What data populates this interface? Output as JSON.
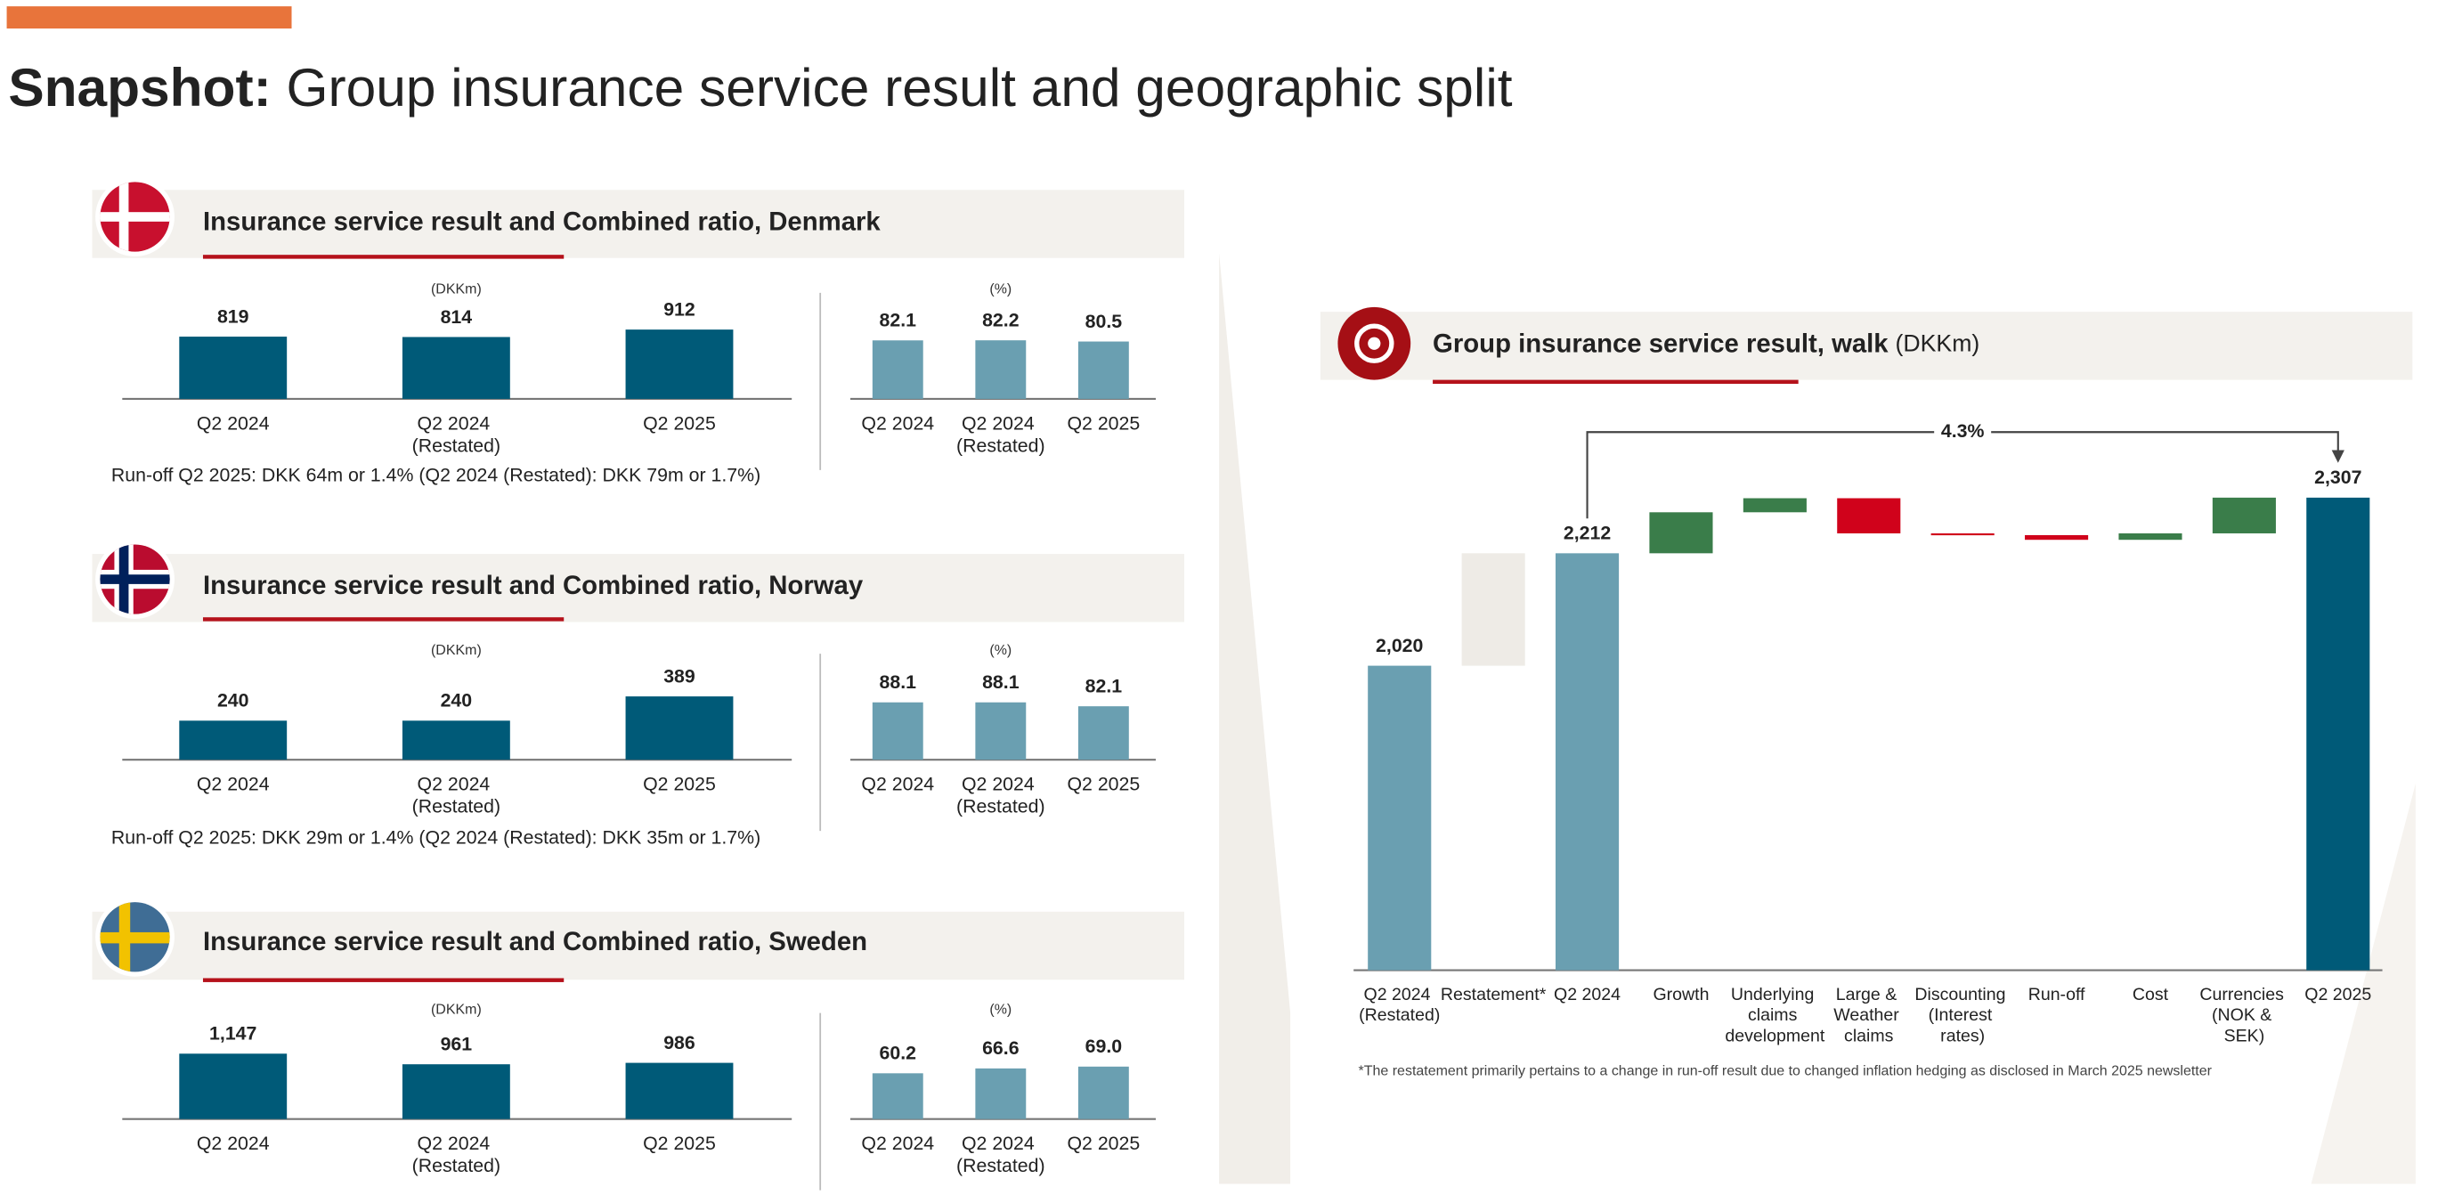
{
  "header": {
    "label": "Snapshot:",
    "title": "Group insurance service result and geographic split"
  },
  "chart_data": [
    {
      "type": "bar",
      "title": "Insurance service result and Combined ratio, Denmark",
      "unit": "(DKKm)",
      "categories": [
        "Q2 2024",
        "Q2 2024 (Restated)",
        "Q2 2025"
      ],
      "values": [
        819,
        814,
        912
      ],
      "color": "#005a78",
      "ylim": [
        0,
        1500
      ],
      "note": "Run-off Q2 2025: DKK 64m or 1.4% (Q2 2024 (Restated): DKK 79m or 1.7%)"
    },
    {
      "type": "bar",
      "unit": "(%)",
      "categories": [
        "Q2 2024",
        "Q2 2024 (Restated)",
        "Q2 2025"
      ],
      "values": [
        82.1,
        82.2,
        80.5
      ],
      "color": "#6a9fb1",
      "ylim": [
        0,
        160
      ]
    },
    {
      "type": "bar",
      "title": "Insurance service result and Combined ratio, Norway",
      "unit": "(DKKm)",
      "categories": [
        "Q2 2024",
        "Q2 2024 (Restated)",
        "Q2 2025"
      ],
      "values": [
        240,
        240,
        389
      ],
      "color": "#005a78",
      "ylim": [
        0,
        700
      ],
      "note": "Run-off Q2 2025: DKK 29m or 1.4% (Q2 2024 (Restated): DKK 35m or 1.7%)"
    },
    {
      "type": "bar",
      "unit": "(%)",
      "categories": [
        "Q2 2024",
        "Q2 2024 (Restated)",
        "Q2 2025"
      ],
      "values": [
        88.1,
        88.1,
        82.1
      ],
      "color": "#6a9fb1",
      "ylim": [
        0,
        175
      ]
    },
    {
      "type": "bar",
      "title": "Insurance service result and Combined ratio, Sweden",
      "unit": "(DKKm)",
      "categories": [
        "Q2 2024",
        "Q2 2024 (Restated)",
        "Q2 2025"
      ],
      "values": [
        1147,
        961,
        986
      ],
      "value_labels": [
        "1,147",
        "961",
        "986"
      ],
      "color": "#005a78",
      "ylim": [
        0,
        2000
      ]
    },
    {
      "type": "bar",
      "unit": "(%)",
      "categories": [
        "Q2 2024",
        "Q2 2024 (Restated)",
        "Q2 2025"
      ],
      "values": [
        60.2,
        66.6,
        69.0
      ],
      "value_labels": [
        "60.2",
        "66.6",
        "69.0"
      ],
      "color": "#6a9fb1",
      "ylim": [
        0,
        150
      ]
    },
    {
      "type": "waterfall",
      "title": "Group insurance service result, walk",
      "unit": "(DKKm)",
      "categories": [
        "Q2 2024 (Restated)",
        "Restatement*",
        "Q2 2024",
        "Growth",
        "Underlying claims development",
        "Large & Weather claims",
        "Discounting (Interest rates)",
        "Run-off",
        "Cost",
        "Currencies (NOK & SEK)",
        "Q2 2025"
      ],
      "values": [
        2020,
        192,
        2212,
        70,
        24,
        -60,
        -3,
        -8,
        11,
        61,
        2307
      ],
      "measures": [
        "absolute",
        "relative",
        "absolute",
        "relative",
        "relative",
        "relative",
        "relative",
        "relative",
        "relative",
        "relative",
        "absolute"
      ],
      "value_labels": [
        "2,020",
        null,
        "2,212",
        null,
        null,
        null,
        null,
        null,
        null,
        null,
        "2,307"
      ],
      "colors": [
        "#6a9fb1",
        "#eeebe6",
        "#6a9fb1",
        "#3a7d4a",
        "#3a7d4a",
        "#d0021b",
        "#d0021b",
        "#d0021b",
        "#3a7d4a",
        "#3a7d4a",
        "#005a78"
      ],
      "ylim": [
        1500,
        2400
      ],
      "annotation": "4.3%",
      "footnote": "*The restatement primarily pertains to a change in run-off result due to changed inflation hedging as disclosed in March 2025 newsletter"
    }
  ]
}
